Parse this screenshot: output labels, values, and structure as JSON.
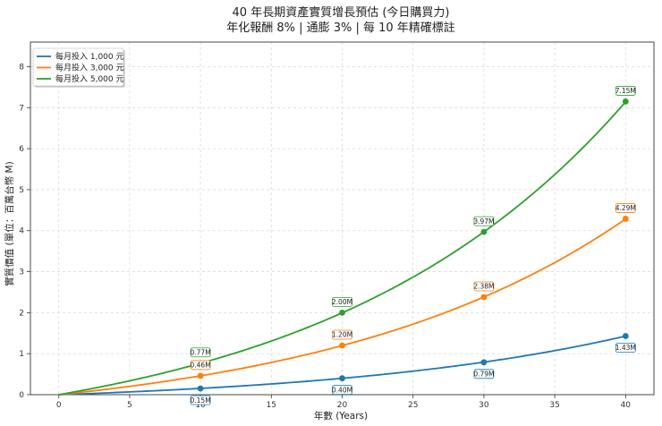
{
  "chart_data": {
    "type": "line",
    "title": "40 年長期資產實質增長預估 (今日購買力)",
    "subtitle": "年化報酬 8% | 通膨 3% | 每 10 年精確標註",
    "xlabel": "年數 (Years)",
    "ylabel": "實質價值 (單位：百萬台幣 M)",
    "xlim": [
      -2,
      42
    ],
    "ylim": [
      0,
      8.6
    ],
    "xticks": [
      0,
      5,
      10,
      15,
      20,
      25,
      30,
      35,
      40
    ],
    "yticks": [
      0,
      1,
      2,
      3,
      4,
      5,
      6,
      7,
      8
    ],
    "grid": true,
    "legend_position": "top-left",
    "real_annual_rate": 0.0485,
    "series": [
      {
        "name": "每月投入 1,000 元",
        "monthly": 1000,
        "color": "#1f77b4",
        "markers": [
          {
            "x": 10,
            "y": 0.15,
            "label": "0.15M"
          },
          {
            "x": 20,
            "y": 0.4,
            "label": "0.40M"
          },
          {
            "x": 30,
            "y": 0.79,
            "label": "0.79M"
          },
          {
            "x": 40,
            "y": 1.43,
            "label": "1.43M"
          }
        ]
      },
      {
        "name": "每月投入 3,000 元",
        "monthly": 3000,
        "color": "#ff7f0e",
        "markers": [
          {
            "x": 10,
            "y": 0.46,
            "label": "0.46M"
          },
          {
            "x": 20,
            "y": 1.2,
            "label": "1.20M"
          },
          {
            "x": 30,
            "y": 2.38,
            "label": "2.38M"
          },
          {
            "x": 40,
            "y": 4.29,
            "label": "4.29M"
          }
        ]
      },
      {
        "name": "每月投入 5,000 元",
        "monthly": 5000,
        "color": "#2ca02c",
        "markers": [
          {
            "x": 10,
            "y": 0.77,
            "label": "0.77M"
          },
          {
            "x": 20,
            "y": 2.0,
            "label": "2.00M"
          },
          {
            "x": 30,
            "y": 3.97,
            "label": "3.97M"
          },
          {
            "x": 40,
            "y": 7.15,
            "label": "7.15M"
          }
        ]
      }
    ]
  }
}
